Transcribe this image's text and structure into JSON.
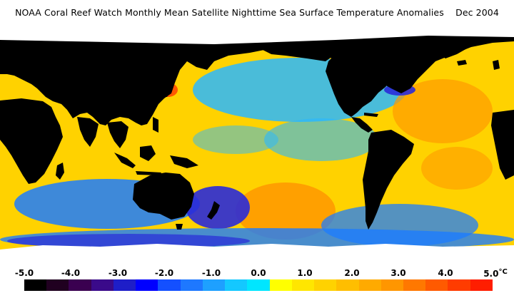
{
  "title": "NOAA Coral Reef Watch Monthly Mean Satellite Nighttime Sea Surface Temperature Anomalies    Dec 2004",
  "legend": {
    "ticks": [
      "-5.0",
      "-4.0",
      "-3.0",
      "-2.0",
      "-1.0",
      "0.0",
      "1.0",
      "2.0",
      "3.0",
      "4.0",
      "5.0"
    ],
    "unit": "°C",
    "colors": [
      "#000000",
      "#200020",
      "#3a0050",
      "#3a0a8a",
      "#1e1ec8",
      "#0000ff",
      "#1450ff",
      "#1e78ff",
      "#1ea0ff",
      "#14c8ff",
      "#00e6ff",
      "#ffff00",
      "#ffe600",
      "#ffd200",
      "#ffbe00",
      "#ffaa00",
      "#ff9600",
      "#ff7800",
      "#ff5a00",
      "#ff3c00",
      "#ff1e00"
    ]
  },
  "map_colors": {
    "land": "#000000",
    "ice": "#ffffff",
    "neutral_ocean": "#ffd200",
    "warm": "#ff9a00",
    "hot": "#ff4a00",
    "light_cool": "#2ab8ff",
    "cool": "#1c7cff",
    "cold": "#2a2ad8",
    "very_cold": "#3a0a8a"
  }
}
